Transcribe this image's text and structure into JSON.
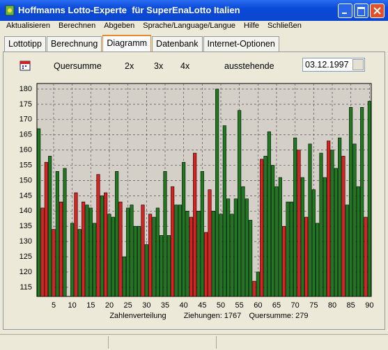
{
  "window": {
    "title": "Hoffmanns Lotto-Experte  für SuperEnaLotto Italien"
  },
  "menu": [
    "Aktualisieren",
    "Berechnen",
    "Abgeben",
    "Sprache/Language/Langue",
    "Hilfe",
    "Schließen"
  ],
  "tabs": [
    "Lottotipp",
    "Berechnung",
    "Diagramm",
    "Datenbank",
    "Internet-Optionen"
  ],
  "active_tab": 2,
  "toolbar": {
    "items": [
      "Quersumme",
      "2x",
      "3x",
      "4x",
      "ausstehende"
    ],
    "date": "03.12.1997"
  },
  "chart_data": {
    "type": "bar",
    "x": [
      1,
      2,
      3,
      4,
      5,
      6,
      7,
      8,
      9,
      10,
      11,
      12,
      13,
      14,
      15,
      16,
      17,
      18,
      19,
      20,
      21,
      22,
      23,
      24,
      25,
      26,
      27,
      28,
      29,
      30,
      31,
      32,
      33,
      34,
      35,
      36,
      37,
      38,
      39,
      40,
      41,
      42,
      43,
      44,
      45,
      46,
      47,
      48,
      49,
      50,
      51,
      52,
      53,
      54,
      55,
      56,
      57,
      58,
      59,
      60,
      61,
      62,
      63,
      64,
      65,
      66,
      67,
      68,
      69,
      70,
      71,
      72,
      73,
      74,
      75,
      76,
      77,
      78,
      79,
      80,
      81,
      82,
      83,
      84,
      85,
      86,
      87,
      88,
      89,
      90
    ],
    "values": [
      167,
      141,
      156,
      158,
      134,
      153,
      143,
      154,
      112,
      136,
      146,
      134,
      143,
      142,
      141,
      136,
      152,
      145,
      146,
      139,
      138,
      153,
      143,
      125,
      141,
      142,
      135,
      135,
      142,
      129,
      139,
      138,
      141,
      132,
      153,
      132,
      148,
      142,
      142,
      156,
      140,
      138,
      159,
      140,
      153,
      133,
      147,
      140,
      180,
      139,
      168,
      144,
      139,
      144,
      173,
      148,
      144,
      137,
      117,
      120,
      157,
      158,
      166,
      155,
      148,
      151,
      135,
      143,
      143,
      164,
      160,
      151,
      138,
      162,
      147,
      136,
      159,
      151,
      163,
      160,
      154,
      164,
      158,
      142,
      174,
      162,
      148,
      174,
      138,
      176
    ],
    "colors": [
      "#1e7a1e",
      "#dd2020",
      "#dd2020",
      "#1e7a1e",
      "#dd2020",
      "#1e7a1e",
      "#dd2020",
      "#1e7a1e",
      "#1e7a1e",
      "#1e7a1e",
      "#dd2020",
      "#1e7a1e",
      "#dd2020",
      "#1e7a1e",
      "#1e7a1e",
      "#1e7a1e",
      "#dd2020",
      "#1e7a1e",
      "#dd2020",
      "#1e7a1e",
      "#1e7a1e",
      "#1e7a1e",
      "#dd2020",
      "#1e7a1e",
      "#1e7a1e",
      "#1e7a1e",
      "#1e7a1e",
      "#1e7a1e",
      "#dd2020",
      "#1e7a1e",
      "#dd2020",
      "#1e7a1e",
      "#1e7a1e",
      "#1e7a1e",
      "#1e7a1e",
      "#1e7a1e",
      "#dd2020",
      "#1e7a1e",
      "#1e7a1e",
      "#1e7a1e",
      "#1e7a1e",
      "#dd2020",
      "#dd2020",
      "#1e7a1e",
      "#1e7a1e",
      "#dd2020",
      "#dd2020",
      "#1e7a1e",
      "#1e7a1e",
      "#1e7a1e",
      "#1e7a1e",
      "#1e7a1e",
      "#1e7a1e",
      "#1e7a1e",
      "#1e7a1e",
      "#1e7a1e",
      "#1e7a1e",
      "#1e7a1e",
      "#dd2020",
      "#1e7a1e",
      "#dd2020",
      "#1e7a1e",
      "#1e7a1e",
      "#1e7a1e",
      "#1e7a1e",
      "#1e7a1e",
      "#dd2020",
      "#1e7a1e",
      "#1e7a1e",
      "#1e7a1e",
      "#dd2020",
      "#1e7a1e",
      "#dd2020",
      "#1e7a1e",
      "#1e7a1e",
      "#1e7a1e",
      "#1e7a1e",
      "#1e7a1e",
      "#dd2020",
      "#1e7a1e",
      "#1e7a1e",
      "#1e7a1e",
      "#dd2020",
      "#1e7a1e",
      "#1e7a1e",
      "#1e7a1e",
      "#1e7a1e",
      "#1e7a1e",
      "#dd2020",
      "#1e7a1e"
    ],
    "xlim": [
      0.5,
      90.5
    ],
    "xticks": [
      5,
      10,
      15,
      20,
      25,
      30,
      35,
      40,
      45,
      50,
      55,
      60,
      65,
      70,
      75,
      80,
      85,
      90
    ],
    "ylim": [
      112,
      180
    ],
    "yticks": [
      115,
      120,
      125,
      130,
      135,
      140,
      145,
      150,
      155,
      160,
      165,
      170,
      175,
      180
    ],
    "grid": true,
    "xlabel": [
      "Zahlenverteilung",
      "Ziehungen: 1767",
      "Quersumme: 279"
    ]
  }
}
